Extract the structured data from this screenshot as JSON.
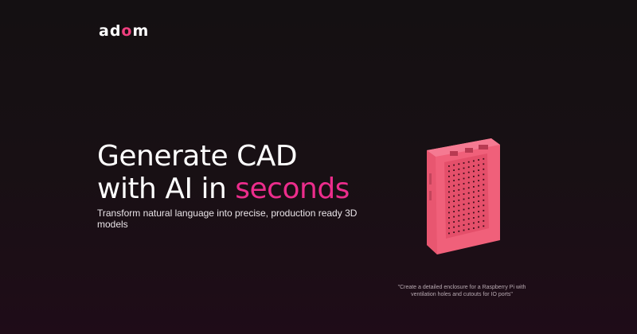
{
  "brand": {
    "logo_prefix": "ad",
    "logo_o": "o",
    "logo_suffix": "m",
    "logo_text": "adom",
    "accent_color": "#ec2d8c"
  },
  "hero": {
    "title_line1": "Generate CAD",
    "title_line2_prefix": "with AI in ",
    "title_line2_accent": "seconds",
    "subtitle": "Transform natural language into precise, production ready 3D models"
  },
  "model": {
    "icon": "3d-enclosure-render",
    "color": "#f0607a",
    "caption": "\"Create a detailed enclosure for a Raspberry Pi with ventilation holes and cutouts for IO ports\""
  }
}
